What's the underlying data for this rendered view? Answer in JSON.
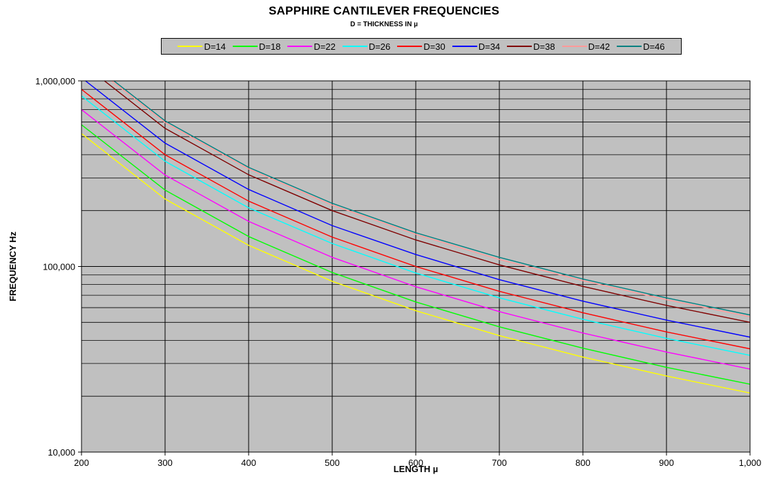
{
  "chart_data": {
    "type": "line",
    "title": "SAPPHIRE CANTILEVER FREQUENCIES",
    "subtitle": "D = THICKNESS IN µ",
    "xlabel": "LENGTH µ",
    "ylabel": "FREQUENCY Hz",
    "x_scale": "linear",
    "y_scale": "log",
    "xlim": [
      200,
      1000
    ],
    "ylim": [
      10000,
      1000000
    ],
    "x_ticks": [
      200,
      300,
      400,
      500,
      600,
      700,
      800,
      900,
      1000
    ],
    "x_tick_labels": [
      "200",
      "300",
      "400",
      "500",
      "600",
      "700",
      "800",
      "900",
      "1,000"
    ],
    "y_ticks": [
      10000,
      100000,
      1000000
    ],
    "y_tick_labels": [
      "10,000",
      "100,000",
      "1,000,000"
    ],
    "grid": true,
    "plot_background": "#c0c0c0",
    "legend_position": "top",
    "x": [
      200,
      300,
      400,
      500,
      600,
      700,
      800,
      900,
      1000
    ],
    "series": [
      {
        "name": "D=14",
        "color": "#ffff00",
        "values": [
          520000,
          231000,
          130000,
          83200,
          57800,
          42400,
          32500,
          25700,
          20800
        ]
      },
      {
        "name": "D=18",
        "color": "#00ff00",
        "values": [
          580000,
          258000,
          145000,
          92800,
          64400,
          47300,
          36300,
          28600,
          23200
        ]
      },
      {
        "name": "D=22",
        "color": "#ff00ff",
        "values": [
          700000,
          311000,
          175000,
          112000,
          77800,
          57100,
          43800,
          34600,
          28000
        ]
      },
      {
        "name": "D=26",
        "color": "#00ffff",
        "values": [
          830000,
          369000,
          207000,
          133000,
          92200,
          67800,
          51900,
          41000,
          33200
        ]
      },
      {
        "name": "D=30",
        "color": "#ff0000",
        "values": [
          900000,
          400000,
          225000,
          144000,
          100000,
          73500,
          56300,
          44400,
          36000
        ]
      },
      {
        "name": "D=34",
        "color": "#0000ff",
        "values": [
          1040000,
          462000,
          260000,
          166000,
          116000,
          84900,
          65000,
          51400,
          41600
        ]
      },
      {
        "name": "D=38",
        "color": "#800000",
        "values": [
          1250000,
          555000,
          312000,
          200000,
          139000,
          102000,
          78100,
          61700,
          50000
        ]
      },
      {
        "name": "D=42",
        "color": "#ff9999",
        "values": [
          1340000,
          596000,
          335000,
          214000,
          149000,
          109000,
          83800,
          66200,
          53600
        ]
      },
      {
        "name": "D=46",
        "color": "#008080",
        "values": [
          1370000,
          609000,
          342000,
          219000,
          152000,
          112000,
          85600,
          67700,
          54800
        ]
      }
    ]
  }
}
